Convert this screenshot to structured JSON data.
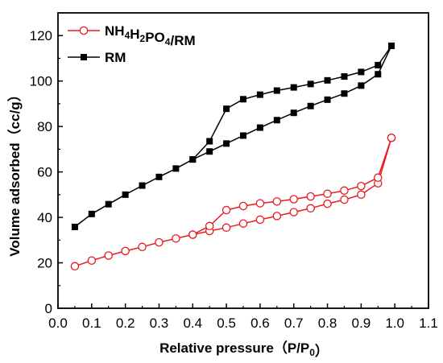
{
  "chart_data": {
    "type": "line",
    "xlabel": "Relative pressure（P/P₀）",
    "ylabel": "Volume adsorbed（cc/g）",
    "xlim": [
      0.0,
      1.1
    ],
    "ylim": [
      0,
      130
    ],
    "x_ticks": [
      "0.0",
      "0.1",
      "0.2",
      "0.3",
      "0.4",
      "0.5",
      "0.6",
      "0.7",
      "0.8",
      "0.9",
      "1.0",
      "1.1"
    ],
    "y_ticks": [
      "0",
      "20",
      "40",
      "60",
      "80",
      "100",
      "120"
    ],
    "grid": false,
    "legend_position": "top-left",
    "legend": [
      {
        "name": "NH₄H₂PO₄/RM",
        "color": "#e8191f",
        "marker": "open-circle"
      },
      {
        "name": "RM",
        "color": "#000000",
        "marker": "filled-square"
      }
    ],
    "series": [
      {
        "name": "NH₄H₂PO₄/RM",
        "color": "#e8191f",
        "marker": "open-circle",
        "adsorption": {
          "x": [
            0.05,
            0.1,
            0.15,
            0.2,
            0.25,
            0.3,
            0.35,
            0.4,
            0.45,
            0.5,
            0.55,
            0.6,
            0.65,
            0.7,
            0.75,
            0.8,
            0.85,
            0.9,
            0.95,
            0.99
          ],
          "y": [
            18.5,
            21.0,
            23.2,
            25.2,
            27.0,
            29.0,
            30.7,
            32.4,
            34.0,
            35.5,
            37.3,
            39.0,
            40.6,
            42.3,
            44.0,
            46.0,
            47.8,
            50.0,
            55.0,
            75.0
          ]
        },
        "desorption": {
          "x": [
            0.99,
            0.95,
            0.9,
            0.85,
            0.8,
            0.75,
            0.7,
            0.65,
            0.6,
            0.55,
            0.5,
            0.45,
            0.4
          ],
          "y": [
            75.0,
            57.5,
            53.8,
            51.8,
            50.4,
            49.2,
            48.0,
            47.0,
            46.2,
            45.0,
            43.2,
            36.2,
            32.4
          ]
        }
      },
      {
        "name": "RM",
        "color": "#000000",
        "marker": "filled-square",
        "adsorption": {
          "x": [
            0.05,
            0.1,
            0.15,
            0.2,
            0.25,
            0.3,
            0.35,
            0.4,
            0.45,
            0.5,
            0.55,
            0.6,
            0.65,
            0.7,
            0.75,
            0.8,
            0.85,
            0.9,
            0.95,
            0.99
          ],
          "y": [
            35.8,
            41.5,
            45.8,
            50.0,
            54.0,
            57.8,
            61.5,
            65.5,
            69.0,
            72.5,
            76.0,
            79.5,
            82.8,
            86.0,
            89.0,
            91.8,
            94.5,
            98.0,
            103.0,
            115.5
          ]
        },
        "desorption": {
          "x": [
            0.99,
            0.95,
            0.9,
            0.85,
            0.8,
            0.75,
            0.7,
            0.65,
            0.6,
            0.55,
            0.5,
            0.45,
            0.4
          ],
          "y": [
            115.5,
            107.0,
            104.0,
            102.0,
            100.3,
            98.7,
            97.2,
            95.8,
            94.0,
            92.0,
            87.8,
            73.5,
            65.5
          ]
        }
      }
    ]
  }
}
